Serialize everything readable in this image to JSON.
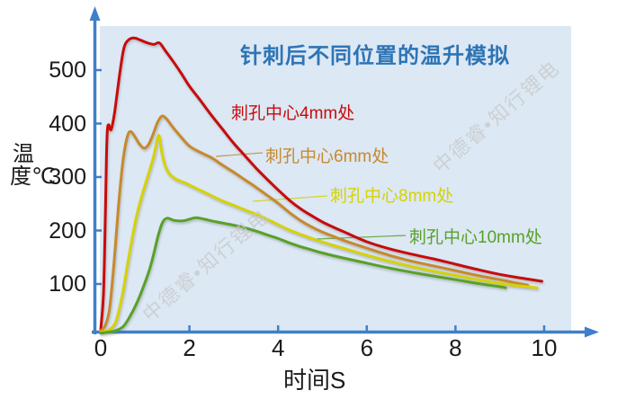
{
  "title": {
    "text": "针刺后不同位置的温升模拟",
    "color": "#2E74B5"
  },
  "watermark": {
    "text": "中德睿•知行锂电",
    "color": "#C7C7C7"
  },
  "axes": {
    "x_label": "时间S",
    "y_label": "温度℃",
    "axis_color": "#3F7FC8",
    "plot_bg": "#DCE8F4",
    "tick_label_color": "#1A1A1A"
  },
  "chart_data": {
    "type": "line",
    "title": "针刺后不同位置的温升模拟",
    "xlabel": "时间S",
    "ylabel": "温度℃",
    "xlim": [
      0,
      10.6
    ],
    "ylim": [
      0,
      600
    ],
    "x_ticks": [
      0,
      2,
      4,
      6,
      8,
      10
    ],
    "y_ticks": [
      500,
      400,
      300,
      200,
      100
    ],
    "grid": false,
    "legend_position": "inline-labels-right-of-curves",
    "series": [
      {
        "id": "4mm",
        "name": "刺孔中心4mm处",
        "color": "#C80B0B",
        "points": [
          [
            0,
            15
          ],
          [
            0.06,
            80
          ],
          [
            0.1,
            210
          ],
          [
            0.13,
            340
          ],
          [
            0.15,
            388
          ],
          [
            0.18,
            398
          ],
          [
            0.22,
            388
          ],
          [
            0.26,
            396
          ],
          [
            0.32,
            425
          ],
          [
            0.42,
            488
          ],
          [
            0.52,
            540
          ],
          [
            0.62,
            556
          ],
          [
            0.75,
            560
          ],
          [
            0.9,
            556
          ],
          [
            1.05,
            551
          ],
          [
            1.2,
            548
          ],
          [
            1.32,
            551
          ],
          [
            1.45,
            537
          ],
          [
            1.6,
            520
          ],
          [
            1.8,
            496
          ],
          [
            2.0,
            470
          ],
          [
            2.25,
            443
          ],
          [
            2.5,
            415
          ],
          [
            2.75,
            389
          ],
          [
            3.0,
            363
          ],
          [
            3.25,
            340
          ],
          [
            3.5,
            317
          ],
          [
            3.75,
            296
          ],
          [
            4.0,
            276
          ],
          [
            4.25,
            257
          ],
          [
            4.5,
            241
          ],
          [
            4.75,
            228
          ],
          [
            5.0,
            216
          ],
          [
            5.25,
            206
          ],
          [
            5.5,
            197
          ],
          [
            6.0,
            179
          ],
          [
            6.5,
            166
          ],
          [
            7.0,
            156
          ],
          [
            7.5,
            147
          ],
          [
            8.0,
            137
          ],
          [
            8.5,
            127
          ],
          [
            9.0,
            118
          ],
          [
            9.5,
            111
          ],
          [
            9.95,
            105
          ]
        ]
      },
      {
        "id": "6mm",
        "name": "刺孔中心6mm处",
        "color": "#C8892B",
        "points": [
          [
            0,
            13
          ],
          [
            0.1,
            22
          ],
          [
            0.2,
            55
          ],
          [
            0.3,
            140
          ],
          [
            0.4,
            245
          ],
          [
            0.5,
            330
          ],
          [
            0.6,
            376
          ],
          [
            0.68,
            385
          ],
          [
            0.78,
            374
          ],
          [
            0.88,
            361
          ],
          [
            0.98,
            354
          ],
          [
            1.08,
            361
          ],
          [
            1.18,
            380
          ],
          [
            1.28,
            402
          ],
          [
            1.38,
            414
          ],
          [
            1.48,
            409
          ],
          [
            1.6,
            396
          ],
          [
            1.8,
            376
          ],
          [
            2.0,
            358
          ],
          [
            2.25,
            346
          ],
          [
            2.5,
            336
          ],
          [
            2.75,
            322
          ],
          [
            3.0,
            309
          ],
          [
            3.25,
            295
          ],
          [
            3.5,
            281
          ],
          [
            3.75,
            266
          ],
          [
            4.0,
            251
          ],
          [
            4.25,
            234
          ],
          [
            4.5,
            219
          ],
          [
            4.75,
            207
          ],
          [
            5.0,
            197
          ],
          [
            5.25,
            189
          ],
          [
            5.5,
            181
          ],
          [
            6.0,
            167
          ],
          [
            6.5,
            154
          ],
          [
            7.0,
            143
          ],
          [
            7.5,
            134
          ],
          [
            8.0,
            125
          ],
          [
            8.5,
            116
          ],
          [
            9.0,
            108
          ],
          [
            9.3,
            103
          ],
          [
            9.63,
            98
          ]
        ]
      },
      {
        "id": "8mm",
        "name": "刺孔中心8mm处",
        "color": "#D6D203",
        "points": [
          [
            0,
            10
          ],
          [
            0.2,
            15
          ],
          [
            0.35,
            32
          ],
          [
            0.5,
            85
          ],
          [
            0.6,
            135
          ],
          [
            0.7,
            182
          ],
          [
            0.8,
            224
          ],
          [
            0.9,
            257
          ],
          [
            1.0,
            285
          ],
          [
            1.1,
            312
          ],
          [
            1.2,
            341
          ],
          [
            1.28,
            372
          ],
          [
            1.32,
            376
          ],
          [
            1.38,
            345
          ],
          [
            1.45,
            322
          ],
          [
            1.55,
            306
          ],
          [
            1.7,
            296
          ],
          [
            1.9,
            289
          ],
          [
            2.1,
            281
          ],
          [
            2.4,
            269
          ],
          [
            2.7,
            257
          ],
          [
            3.0,
            247
          ],
          [
            3.3,
            237
          ],
          [
            3.6,
            227
          ],
          [
            3.9,
            215
          ],
          [
            4.2,
            203
          ],
          [
            4.5,
            193
          ],
          [
            4.8,
            184
          ],
          [
            5.1,
            176
          ],
          [
            5.5,
            166
          ],
          [
            6.0,
            154
          ],
          [
            6.5,
            143
          ],
          [
            7.0,
            133
          ],
          [
            7.5,
            124
          ],
          [
            8.0,
            116
          ],
          [
            8.5,
            108
          ],
          [
            9.0,
            101
          ],
          [
            9.5,
            96
          ],
          [
            9.84,
            93
          ]
        ]
      },
      {
        "id": "10mm",
        "name": "刺孔中心10mm处",
        "color": "#58A127",
        "points": [
          [
            0,
            8
          ],
          [
            0.3,
            12
          ],
          [
            0.5,
            20
          ],
          [
            0.65,
            38
          ],
          [
            0.8,
            62
          ],
          [
            0.95,
            92
          ],
          [
            1.1,
            127
          ],
          [
            1.2,
            158
          ],
          [
            1.3,
            192
          ],
          [
            1.4,
            216
          ],
          [
            1.5,
            223
          ],
          [
            1.65,
            219
          ],
          [
            1.85,
            218
          ],
          [
            2.0,
            221
          ],
          [
            2.15,
            224
          ],
          [
            2.35,
            221
          ],
          [
            2.5,
            218
          ],
          [
            2.75,
            214
          ],
          [
            3.0,
            210
          ],
          [
            3.25,
            205
          ],
          [
            3.5,
            199
          ],
          [
            3.75,
            192
          ],
          [
            4.0,
            185
          ],
          [
            4.25,
            177
          ],
          [
            4.5,
            170
          ],
          [
            4.75,
            164
          ],
          [
            5.0,
            158
          ],
          [
            5.5,
            148
          ],
          [
            6.0,
            139
          ],
          [
            6.5,
            130
          ],
          [
            7.0,
            122
          ],
          [
            7.5,
            115
          ],
          [
            8.0,
            108
          ],
          [
            8.5,
            101
          ],
          [
            9.0,
            95
          ],
          [
            9.13,
            93
          ]
        ]
      }
    ]
  }
}
